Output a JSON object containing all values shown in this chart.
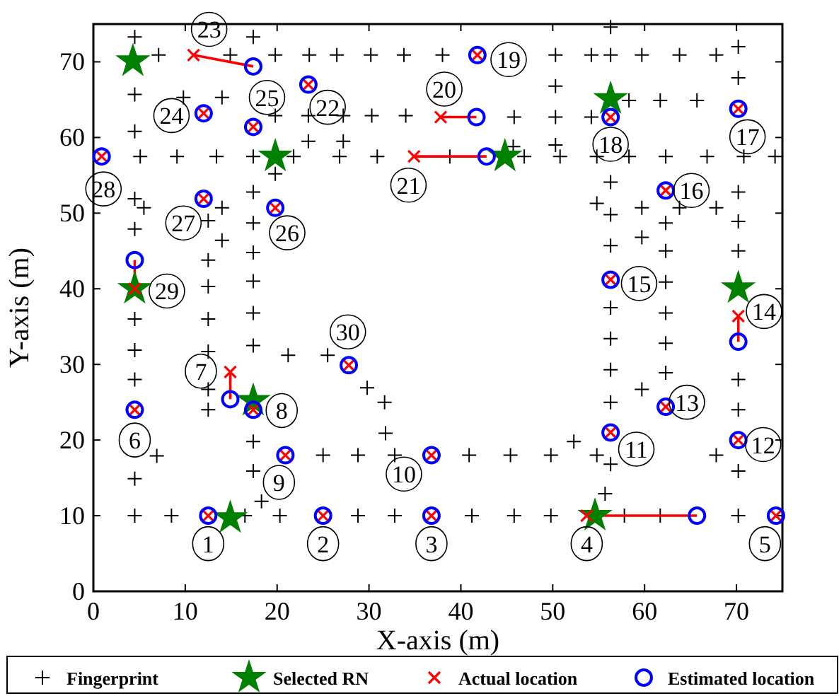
{
  "chart_data": {
    "type": "scatter",
    "xlabel": "X-axis (m)",
    "ylabel": "Y-axis (m)",
    "xlim": [
      0,
      75
    ],
    "ylim": [
      0,
      75
    ],
    "xticks": [
      0,
      10,
      20,
      30,
      40,
      50,
      60,
      70
    ],
    "yticks": [
      0,
      10,
      20,
      30,
      40,
      50,
      60,
      70
    ],
    "legend": "bottom",
    "series": [
      {
        "name": "Fingerprint",
        "type": "scatter",
        "marker": "plus",
        "color": "#000000",
        "x": [
          4.5,
          4.5,
          4.5,
          4.5,
          4.5,
          4.5,
          4.5,
          4.5,
          4.5,
          4.5,
          5.1,
          9.1,
          13.4,
          17.4,
          21.8,
          26.8,
          30.9,
          38.8,
          46.9,
          50.8,
          54.8,
          58.3,
          62.3,
          66.8,
          70.8,
          74.2,
          12.5,
          12.5,
          12.5,
          12.5,
          12.5,
          12.5,
          12.5,
          14,
          14,
          5.5,
          9.8,
          14,
          17.4,
          17.4,
          17.4,
          17.4,
          17.4,
          17.4,
          17.4,
          17.4,
          17.4,
          18.3,
          16.5,
          8.5,
          20.3,
          28.8,
          32.8,
          41.2,
          45.8,
          49.8,
          57.8,
          61.7,
          70.2,
          6.9,
          25,
          28.8,
          32.8,
          40.9,
          45.4,
          49.8,
          54.8,
          67.8,
          52.3,
          56.3,
          55.7,
          56.3,
          56.3,
          56.3,
          56.3,
          62.3,
          62.3,
          62.3,
          59.7,
          70.2,
          70.2,
          70.2,
          21.2,
          25.5,
          29.8,
          31.7,
          31.8,
          56.3,
          56.3,
          56.3,
          56.3,
          56.3,
          38,
          50.3,
          54.2,
          59.7,
          63.8,
          67.8,
          70.2,
          50.3,
          70.2,
          58.3,
          61.7,
          65.7,
          45.8,
          50.3,
          54.2,
          45.7,
          50.3,
          62.3,
          62.3,
          54.8,
          59.7,
          63.8,
          67.8,
          59.7,
          62.3,
          70.2,
          70.2,
          70.2,
          7.1,
          14.9,
          19.8,
          23.5,
          26.5,
          30.2,
          33.8,
          19.8,
          23.4,
          27.2,
          30.3,
          34,
          23.4,
          27.2,
          19.8
        ],
        "values": [
          73.3,
          65.7,
          60.8,
          51.9,
          47.9,
          36,
          31.9,
          28,
          14.9,
          10,
          57.5,
          57.5,
          57.5,
          57.5,
          57.5,
          57.5,
          57.5,
          57.5,
          57.5,
          57.5,
          57.5,
          57.5,
          57.5,
          57.5,
          57.5,
          57.5,
          49,
          43.8,
          40.3,
          36,
          31.7,
          26.7,
          24,
          46.4,
          50.7,
          50.7,
          65.3,
          65.3,
          73.3,
          52.8,
          48.7,
          44.8,
          41,
          36.8,
          32.5,
          19.8,
          15.9,
          11.9,
          10,
          10,
          10,
          10,
          10,
          10,
          10,
          10,
          10,
          10,
          10,
          17.9,
          18,
          18,
          18,
          18,
          18,
          18,
          18,
          18,
          19.8,
          16.8,
          12.9,
          37.5,
          33.4,
          29.3,
          25,
          36.8,
          32.8,
          28.9,
          26.7,
          28,
          24,
          15.9,
          31.2,
          31.2,
          26.9,
          25,
          20.9,
          74.6,
          70.9,
          54.1,
          49.8,
          45.7,
          70.9,
          70.9,
          70.9,
          70.9,
          70.9,
          70.9,
          72,
          66.8,
          67.9,
          64.9,
          64.9,
          64.9,
          62.7,
          62.7,
          62.7,
          58.8,
          59,
          48.7,
          45,
          51.3,
          50.7,
          50.7,
          50.7,
          46.8,
          40.9,
          52.8,
          48.9,
          45,
          70.9,
          70.9,
          70.9,
          70.9,
          70.9,
          70.9,
          70.9,
          62.9,
          62.9,
          62.9,
          62.9,
          62.9,
          59.5,
          59.5,
          55.2
        ]
      },
      {
        "type": "line",
        "color": "#ff0000",
        "x": [
          53.7,
          65.7
        ],
        "values": [
          10,
          10
        ]
      },
      {
        "type": "line",
        "color": "#ff0000",
        "x": [
          14.9,
          14.9
        ],
        "values": [
          29,
          25.4
        ]
      },
      {
        "type": "line",
        "color": "#ff0000",
        "x": [
          70.2,
          70.2
        ],
        "values": [
          36.4,
          33
        ]
      },
      {
        "type": "line",
        "color": "#ff0000",
        "x": [
          37.8,
          41.7
        ],
        "values": [
          62.7,
          62.7
        ]
      },
      {
        "type": "line",
        "color": "#ff0000",
        "x": [
          34.9,
          42.8
        ],
        "values": [
          57.5,
          57.5
        ]
      },
      {
        "type": "line",
        "color": "#ff0000",
        "x": [
          10.9,
          17.4
        ],
        "values": [
          70.9,
          69.4
        ]
      },
      {
        "type": "line",
        "color": "#ff0000",
        "x": [
          4.5,
          4.5
        ],
        "values": [
          40,
          43.8
        ]
      },
      {
        "name": "Selected RN",
        "type": "scatter",
        "marker": "star",
        "color": "#008000",
        "x": [
          14.9,
          54.6,
          17.4,
          4.5,
          70.2,
          44.8,
          19.8,
          56.3,
          4.3
        ],
        "values": [
          9.7,
          10,
          25.2,
          40,
          40.1,
          57.5,
          57.5,
          65.1,
          70.1
        ]
      },
      {
        "name": "Actual location",
        "type": "scatter",
        "marker": "cross",
        "color": "#ff0000",
        "x": [
          12.5,
          25,
          36.8,
          53.7,
          74.3,
          4.5,
          14.9,
          17.4,
          20.9,
          36.8,
          56.3,
          70.2,
          62.3,
          70.2,
          56.3,
          62.3,
          70.2,
          56.3,
          41.8,
          37.8,
          34.9,
          23.4,
          10.9,
          12,
          17.4,
          19.8,
          12,
          0.9,
          4.5,
          27.8
        ],
        "values": [
          10,
          10,
          10,
          10,
          10,
          24,
          29,
          24,
          18,
          18,
          21,
          20,
          24.4,
          36.4,
          41.2,
          53,
          63.8,
          62.7,
          70.9,
          62.7,
          57.5,
          67,
          70.9,
          63.2,
          61.4,
          50.7,
          51.9,
          57.5,
          40,
          29.9
        ]
      },
      {
        "name": "Estimated location",
        "type": "scatter",
        "marker": "circle",
        "color": "#0000ff",
        "x": [
          12.5,
          25,
          36.8,
          65.7,
          74.3,
          4.5,
          14.9,
          17.4,
          20.9,
          36.8,
          56.3,
          70.2,
          62.3,
          70.2,
          56.3,
          62.3,
          70.2,
          56.3,
          41.8,
          41.7,
          42.8,
          23.4,
          17.4,
          12,
          17.4,
          19.8,
          12,
          0.9,
          4.5,
          27.8
        ],
        "values": [
          10,
          10,
          10,
          10,
          10,
          24,
          25.4,
          24,
          18,
          18,
          21,
          20,
          24.4,
          33,
          41.2,
          53,
          63.8,
          62.7,
          70.9,
          62.7,
          57.5,
          67,
          69.4,
          63.2,
          61.4,
          50.7,
          51.9,
          57.5,
          43.8,
          29.9
        ]
      }
    ],
    "annotations": [
      {
        "text": "1",
        "x": 12.5,
        "y": 6.3
      },
      {
        "text": "2",
        "x": 25,
        "y": 6.3
      },
      {
        "text": "3",
        "x": 36.8,
        "y": 6.3
      },
      {
        "text": "4",
        "x": 53.7,
        "y": 6.3
      },
      {
        "text": "5",
        "x": 73.1,
        "y": 6.3
      },
      {
        "text": "6",
        "x": 4.5,
        "y": 20
      },
      {
        "text": "7",
        "x": 11.7,
        "y": 29.1
      },
      {
        "text": "8",
        "x": 20.5,
        "y": 23.9
      },
      {
        "text": "9",
        "x": 20.2,
        "y": 14.4
      },
      {
        "text": "10",
        "x": 33.8,
        "y": 15.5
      },
      {
        "text": "11",
        "x": 59.1,
        "y": 18.8
      },
      {
        "text": "12",
        "x": 72.9,
        "y": 19.4
      },
      {
        "text": "13",
        "x": 64.6,
        "y": 25
      },
      {
        "text": "14",
        "x": 73,
        "y": 37
      },
      {
        "text": "15",
        "x": 59.4,
        "y": 40.7
      },
      {
        "text": "16",
        "x": 65.1,
        "y": 53
      },
      {
        "text": "17",
        "x": 71.2,
        "y": 60.1
      },
      {
        "text": "18",
        "x": 56.3,
        "y": 59.1
      },
      {
        "text": "19",
        "x": 45.2,
        "y": 70.3
      },
      {
        "text": "20",
        "x": 38.2,
        "y": 66.4
      },
      {
        "text": "21",
        "x": 34.3,
        "y": 53.7
      },
      {
        "text": "22",
        "x": 25.5,
        "y": 64
      },
      {
        "text": "23",
        "x": 12.6,
        "y": 74.3
      },
      {
        "text": "24",
        "x": 8.5,
        "y": 62.9
      },
      {
        "text": "25",
        "x": 18.9,
        "y": 65.3
      },
      {
        "text": "26",
        "x": 21.1,
        "y": 47.4
      },
      {
        "text": "27",
        "x": 9.8,
        "y": 48.7
      },
      {
        "text": "28",
        "x": 1.1,
        "y": 53.2
      },
      {
        "text": "29",
        "x": 8,
        "y": 39.7
      },
      {
        "text": "30",
        "x": 27.7,
        "y": 34.3
      }
    ]
  }
}
